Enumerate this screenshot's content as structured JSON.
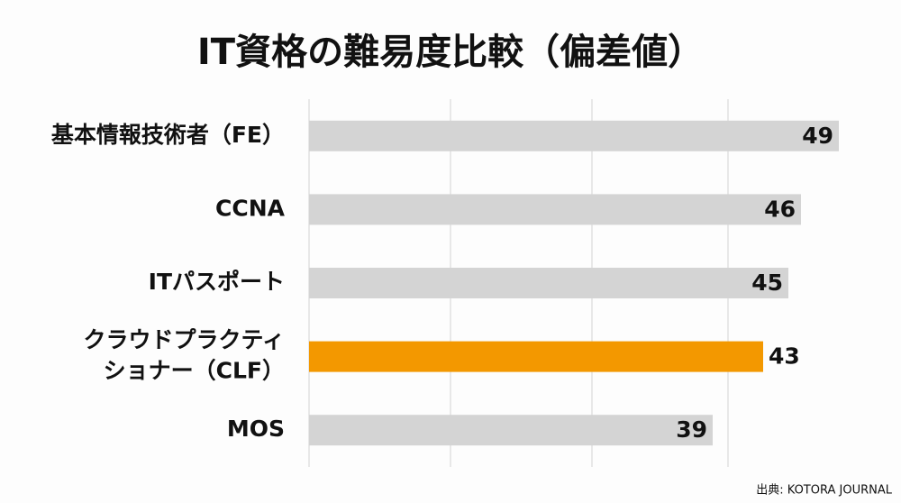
{
  "chart_data": {
    "type": "bar",
    "orientation": "horizontal",
    "title": "IT資格の難易度比較（偏差値）",
    "categories": [
      "基本情報技術者（FE）",
      "CCNA",
      "ITパスポート",
      [
        "クラウドプラクティ",
        "ショナー（CLF）"
      ],
      "MOS"
    ],
    "values": [
      49,
      46,
      45,
      43,
      39
    ],
    "colors": [
      "#d4d4d4",
      "#d4d4d4",
      "#d4d4d4",
      "#f39800",
      "#d4d4d4"
    ],
    "xlim": [
      7,
      53
    ],
    "source": "出典: KOTORA JOURNAL"
  }
}
